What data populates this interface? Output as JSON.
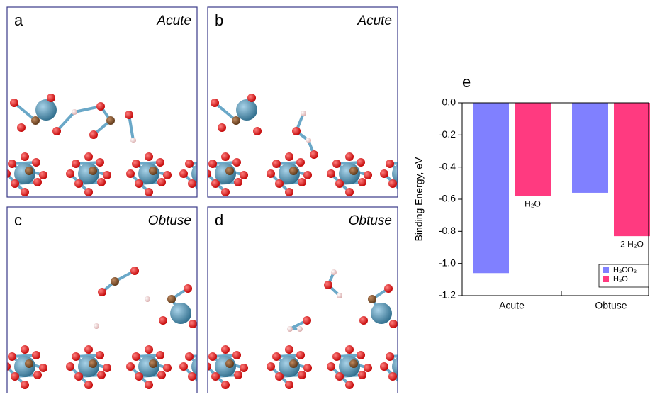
{
  "panels": [
    {
      "label": "a",
      "caption": "Acute"
    },
    {
      "label": "b",
      "caption": "Acute"
    },
    {
      "label": "c",
      "caption": "Obtuse"
    },
    {
      "label": "d",
      "caption": "Obtuse"
    }
  ],
  "chart_data": {
    "type": "bar",
    "panel_label": "e",
    "y_label": "Binding Energy, eV",
    "categories": [
      "Acute",
      "Obtuse"
    ],
    "series": [
      {
        "name": "H₂CO₃",
        "color": "#8080ff",
        "values": [
          -1.06,
          -0.56
        ]
      },
      {
        "name": "H₂O",
        "color": "#ff3a80",
        "values": [
          -0.58,
          -0.83
        ],
        "bar_labels": [
          "H₂O",
          "2 H₂O"
        ]
      }
    ],
    "ylim": [
      -1.2,
      0.0
    ],
    "yticks": [
      {
        "value": -1.2,
        "label": "-1.2"
      },
      {
        "value": -1.0,
        "label": "-1.0"
      },
      -0.8,
      -0.6,
      -0.4,
      -0.2,
      {
        "value": 0.0,
        "label": "0.0"
      }
    ],
    "legend": "lower right"
  }
}
